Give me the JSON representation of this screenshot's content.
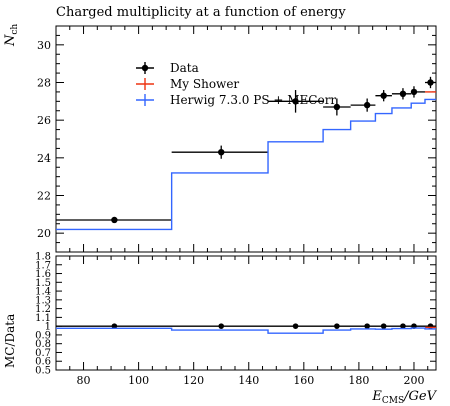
{
  "chart_data": [
    {
      "type": "line",
      "panel": "main",
      "title": "Charged multiplicity at a function of energy",
      "ylabel_main": "N",
      "ylabel_sub": "ch",
      "xlim": [
        70,
        208
      ],
      "ylim": [
        19,
        31
      ],
      "yticks": [
        20,
        22,
        24,
        26,
        28,
        30
      ],
      "legend_position": "upper-left",
      "legend": [
        "Data",
        "My Shower",
        "Herwig 7.3.0 PS + MECorr"
      ],
      "series": [
        {
          "name": "Data",
          "color": "#000000",
          "points": [
            {
              "x": 91.2,
              "xlow": 70,
              "xhigh": 112,
              "y": 20.7,
              "yerr": 0.15
            },
            {
              "x": 130,
              "xlow": 112,
              "xhigh": 147,
              "y": 24.3,
              "yerr": 0.35
            },
            {
              "x": 157,
              "xlow": 147,
              "xhigh": 167,
              "y": 27.0,
              "yerr": 0.6
            },
            {
              "x": 172,
              "xlow": 167,
              "xhigh": 177,
              "y": 26.7,
              "yerr": 0.45
            },
            {
              "x": 183,
              "xlow": 177,
              "xhigh": 186,
              "y": 26.8,
              "yerr": 0.35
            },
            {
              "x": 189,
              "xlow": 186,
              "xhigh": 192,
              "y": 27.3,
              "yerr": 0.3
            },
            {
              "x": 196,
              "xlow": 192,
              "xhigh": 199,
              "y": 27.4,
              "yerr": 0.3
            },
            {
              "x": 200,
              "xlow": 199,
              "xhigh": 204,
              "y": 27.5,
              "yerr": 0.3
            },
            {
              "x": 206,
              "xlow": 204,
              "xhigh": 208,
              "y": 28.0,
              "yerr": 0.3
            }
          ]
        },
        {
          "name": "My Shower",
          "color": "#ee3311",
          "steps": [
            {
              "xlow": 204,
              "xhigh": 208,
              "y": 27.5
            }
          ]
        },
        {
          "name": "Herwig 7.3.0 PS + MECorr",
          "color": "#3366ff",
          "steps": [
            {
              "xlow": 70,
              "xhigh": 112,
              "y": 20.2
            },
            {
              "xlow": 112,
              "xhigh": 147,
              "y": 23.2
            },
            {
              "xlow": 147,
              "xhigh": 167,
              "y": 24.85
            },
            {
              "xlow": 167,
              "xhigh": 177,
              "y": 25.5
            },
            {
              "xlow": 177,
              "xhigh": 186,
              "y": 25.95
            },
            {
              "xlow": 186,
              "xhigh": 192,
              "y": 26.35
            },
            {
              "xlow": 192,
              "xhigh": 199,
              "y": 26.65
            },
            {
              "xlow": 199,
              "xhigh": 204,
              "y": 26.9
            },
            {
              "xlow": 204,
              "xhigh": 208,
              "y": 27.1
            }
          ]
        }
      ]
    },
    {
      "type": "line",
      "panel": "ratio",
      "ylabel": "MC/Data",
      "xlabel_main": "E",
      "xlabel_sub": "CMS",
      "xlabel_suffix": "/GeV",
      "xlim": [
        70,
        208
      ],
      "ylim": [
        0.5,
        1.8
      ],
      "yticks": [
        "1.8",
        "1.7",
        "1.6",
        "1.5",
        "1.4",
        "1.3",
        "1.2",
        "1.1",
        "1",
        "0.9",
        "0.8",
        "0.7",
        "0.6",
        "0.5"
      ],
      "xticks": [
        "80",
        "100",
        "120",
        "140",
        "160",
        "180",
        "200"
      ],
      "series": [
        {
          "name": "Data",
          "color": "#000000",
          "points_x": [
            91.2,
            130,
            157,
            172,
            183,
            189,
            196,
            200,
            206
          ],
          "value": 1.0
        },
        {
          "name": "My Shower",
          "color": "#ee3311",
          "steps": [
            {
              "xlow": 204,
              "xhigh": 208,
              "y": 0.985
            }
          ]
        },
        {
          "name": "Herwig 7.3.0 PS + MECorr",
          "color": "#3366ff",
          "steps": [
            {
              "xlow": 70,
              "xhigh": 112,
              "y": 0.975
            },
            {
              "xlow": 112,
              "xhigh": 147,
              "y": 0.955
            },
            {
              "xlow": 147,
              "xhigh": 167,
              "y": 0.92
            },
            {
              "xlow": 167,
              "xhigh": 177,
              "y": 0.955
            },
            {
              "xlow": 177,
              "xhigh": 186,
              "y": 0.968
            },
            {
              "xlow": 186,
              "xhigh": 192,
              "y": 0.965
            },
            {
              "xlow": 192,
              "xhigh": 199,
              "y": 0.972
            },
            {
              "xlow": 199,
              "xhigh": 204,
              "y": 0.978
            },
            {
              "xlow": 204,
              "xhigh": 208,
              "y": 0.968
            }
          ]
        }
      ]
    }
  ]
}
